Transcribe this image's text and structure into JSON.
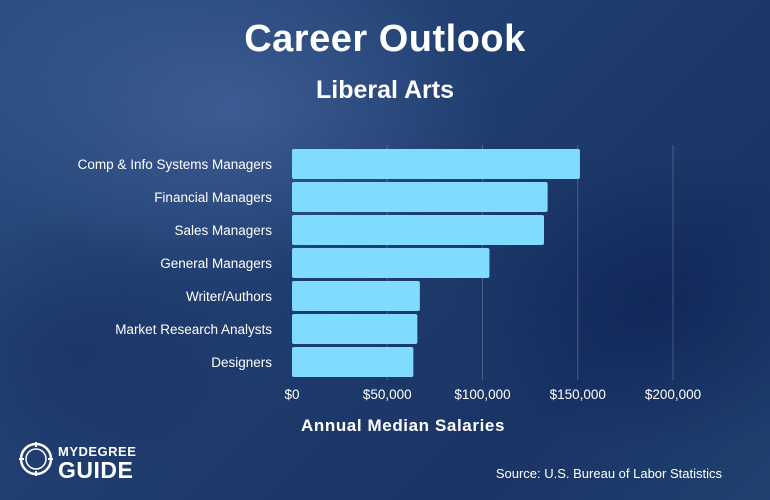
{
  "header": {
    "title": "Career Outlook",
    "subtitle": "Liberal Arts"
  },
  "chart_data": {
    "type": "bar",
    "orientation": "horizontal",
    "categories": [
      "Comp & Info Systems Managers",
      "Financial Managers",
      "Sales Managers",
      "General Managers",
      "Writer/Authors",
      "Market Research Analysts",
      "Designers"
    ],
    "values": [
      151150,
      134180,
      132290,
      103650,
      67120,
      65810,
      63700
    ],
    "xlabel": "Annual Median Salaries",
    "ylabel": "",
    "xlim": [
      0,
      200000
    ],
    "xticks": [
      0,
      50000,
      100000,
      150000,
      200000
    ],
    "xtick_labels": [
      "$0",
      "$50,000",
      "$100,000",
      "$150,000",
      "$200,000"
    ],
    "grid": true,
    "bar_color": "#7fdcff"
  },
  "footer": {
    "source": "Source: U.S. Bureau of Labor Statistics",
    "logo_line1": "MYDEGREE",
    "logo_line2": "GUIDE"
  }
}
